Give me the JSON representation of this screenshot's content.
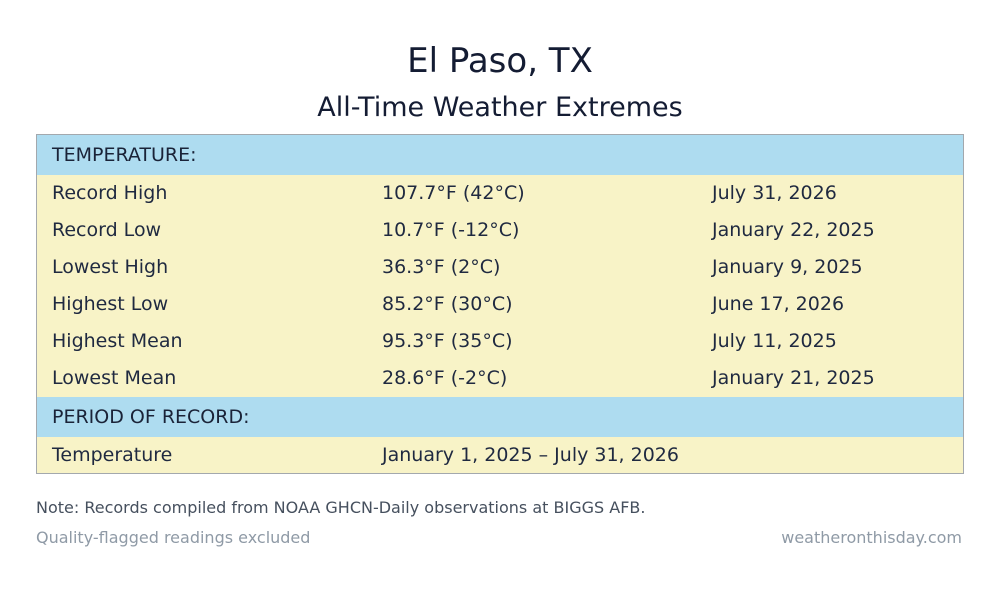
{
  "header": {
    "title": "El Paso, TX",
    "subtitle": "All-Time Weather Extremes"
  },
  "table": {
    "temperature_header": "TEMPERATURE:",
    "rows": [
      {
        "label": "Record High",
        "value": "107.7°F (42°C)",
        "date": "July 31, 2026"
      },
      {
        "label": "Record Low",
        "value": "10.7°F (-12°C)",
        "date": "January 22, 2025"
      },
      {
        "label": "Lowest High",
        "value": "36.3°F (2°C)",
        "date": "January 9, 2025"
      },
      {
        "label": "Highest Low",
        "value": "85.2°F (30°C)",
        "date": "June 17, 2026"
      },
      {
        "label": "Highest Mean",
        "value": "95.3°F (35°C)",
        "date": "July 11, 2025"
      },
      {
        "label": "Lowest Mean",
        "value": "28.6°F (-2°C)",
        "date": "January 21, 2025"
      }
    ],
    "period_header": "PERIOD OF RECORD:",
    "period_row": {
      "label": "Temperature",
      "value": "January 1, 2025 – July 31, 2026"
    }
  },
  "footer": {
    "note": "Note: Records compiled from NOAA GHCN-Daily observations at BIGGS AFB.",
    "quality": "Quality-flagged readings excluded",
    "source": "weatheronthisday.com"
  },
  "colors": {
    "header_band": "#aedcf0",
    "row_background": "#f8f3c7",
    "border": "#a3a8ad"
  }
}
